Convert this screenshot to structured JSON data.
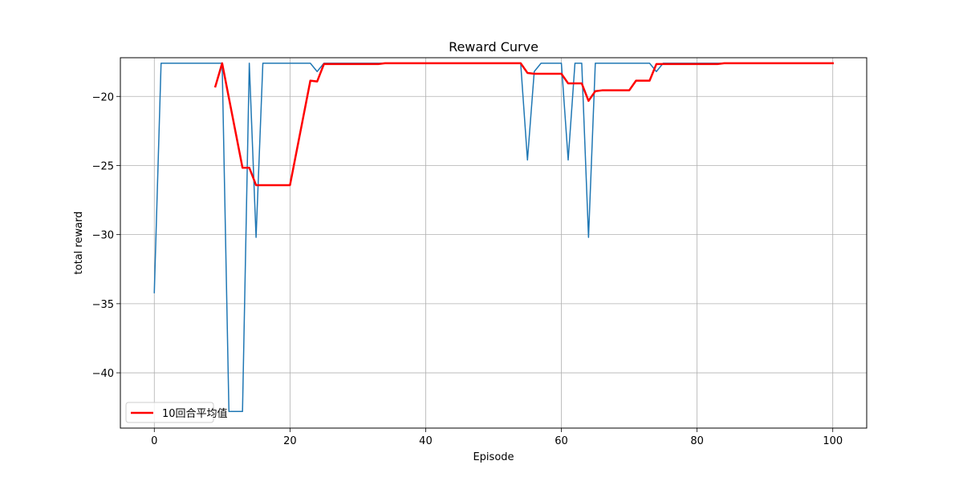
{
  "chart_data": {
    "type": "line",
    "title": "Reward Curve",
    "xlabel": "Episode",
    "ylabel": "total reward",
    "xlim": [
      -5,
      105
    ],
    "ylim": [
      -44,
      -17.2
    ],
    "xticks": [
      0,
      20,
      40,
      60,
      80,
      100
    ],
    "yticks": [
      -40,
      -35,
      -30,
      -25,
      -20
    ],
    "xtick_labels": [
      "0",
      "20",
      "40",
      "60",
      "80",
      "100"
    ],
    "ytick_labels": [
      "−40",
      "−35",
      "−30",
      "−25",
      "−20"
    ],
    "grid": true,
    "legend_position": "lower-left",
    "series": [
      {
        "color": "#1f77b4",
        "linewidth": 1.5,
        "x": [
          0,
          1,
          2,
          3,
          4,
          5,
          6,
          7,
          8,
          9,
          10,
          11,
          12,
          13,
          14,
          15,
          16,
          17,
          18,
          19,
          20,
          21,
          22,
          23,
          24,
          25,
          26,
          27,
          28,
          29,
          30,
          31,
          32,
          33,
          34,
          35,
          36,
          37,
          38,
          39,
          40,
          41,
          42,
          43,
          44,
          45,
          46,
          47,
          48,
          49,
          50,
          51,
          52,
          53,
          54,
          55,
          56,
          57,
          58,
          59,
          60,
          61,
          62,
          63,
          64,
          65,
          66,
          67,
          68,
          69,
          70,
          71,
          72,
          73,
          74,
          75,
          76,
          77,
          78,
          79,
          80,
          81,
          82,
          83,
          84,
          85,
          86,
          87,
          88,
          89,
          90,
          91,
          92,
          93,
          94,
          95,
          96,
          97,
          98,
          99,
          100
        ],
        "y": [
          -34.2,
          -17.6,
          -17.6,
          -17.6,
          -17.6,
          -17.6,
          -17.6,
          -17.6,
          -17.6,
          -17.6,
          -17.6,
          -42.8,
          -42.8,
          -42.8,
          -17.6,
          -30.2,
          -17.6,
          -17.6,
          -17.6,
          -17.6,
          -17.6,
          -17.6,
          -17.6,
          -17.6,
          -18.2,
          -17.6,
          -17.6,
          -17.6,
          -17.6,
          -17.6,
          -17.6,
          -17.6,
          -17.6,
          -17.6,
          -17.6,
          -17.6,
          -17.6,
          -17.6,
          -17.6,
          -17.6,
          -17.6,
          -17.6,
          -17.6,
          -17.6,
          -17.6,
          -17.6,
          -17.6,
          -17.6,
          -17.6,
          -17.6,
          -17.6,
          -17.6,
          -17.6,
          -17.6,
          -17.6,
          -24.6,
          -18.2,
          -17.6,
          -17.6,
          -17.6,
          -17.6,
          -24.6,
          -17.6,
          -17.6,
          -30.2,
          -17.6,
          -17.6,
          -17.6,
          -17.6,
          -17.6,
          -17.6,
          -17.6,
          -17.6,
          -17.6,
          -18.2,
          -17.6,
          -17.6,
          -17.6,
          -17.6,
          -17.6,
          -17.6,
          -17.6,
          -17.6,
          -17.6,
          -17.6,
          -17.6,
          -17.6,
          -17.6,
          -17.6,
          -17.6,
          -17.6,
          -17.6,
          -17.6,
          -17.6,
          -17.6,
          -17.6,
          -17.6,
          -17.6,
          -17.6,
          -17.6,
          -17.6
        ]
      },
      {
        "name": "10回合平均值",
        "color": "#ff0000",
        "linewidth": 2.5,
        "x": [
          9,
          10,
          11,
          12,
          13,
          14,
          15,
          16,
          17,
          18,
          19,
          20,
          21,
          22,
          23,
          24,
          25,
          26,
          27,
          28,
          29,
          30,
          31,
          32,
          33,
          34,
          35,
          36,
          37,
          38,
          39,
          40,
          41,
          42,
          43,
          44,
          45,
          46,
          47,
          48,
          49,
          50,
          51,
          52,
          53,
          54,
          55,
          56,
          57,
          58,
          59,
          60,
          61,
          62,
          63,
          64,
          65,
          66,
          67,
          68,
          69,
          70,
          71,
          72,
          73,
          74,
          75,
          76,
          77,
          78,
          79,
          80,
          81,
          82,
          83,
          84,
          85,
          86,
          87,
          88,
          89,
          90,
          91,
          92,
          93,
          94,
          95,
          96,
          97,
          98,
          99,
          100
        ],
        "y": [
          -19.28,
          -17.6,
          -20.12,
          -22.64,
          -25.16,
          -25.16,
          -26.42,
          -26.42,
          -26.42,
          -26.42,
          -26.42,
          -26.42,
          -23.9,
          -21.38,
          -18.86,
          -18.92,
          -17.66,
          -17.66,
          -17.66,
          -17.66,
          -17.66,
          -17.66,
          -17.66,
          -17.66,
          -17.66,
          -17.6,
          -17.6,
          -17.6,
          -17.6,
          -17.6,
          -17.6,
          -17.6,
          -17.6,
          -17.6,
          -17.6,
          -17.6,
          -17.6,
          -17.6,
          -17.6,
          -17.6,
          -17.6,
          -17.6,
          -17.6,
          -17.6,
          -17.6,
          -17.6,
          -18.3,
          -18.36,
          -18.36,
          -18.36,
          -18.36,
          -18.36,
          -19.06,
          -19.06,
          -19.06,
          -20.32,
          -19.62,
          -19.56,
          -19.56,
          -19.56,
          -19.56,
          -19.56,
          -18.86,
          -18.86,
          -18.86,
          -17.66,
          -17.66,
          -17.66,
          -17.66,
          -17.66,
          -17.66,
          -17.66,
          -17.66,
          -17.66,
          -17.66,
          -17.6,
          -17.6,
          -17.6,
          -17.6,
          -17.6,
          -17.6,
          -17.6,
          -17.6,
          -17.6,
          -17.6,
          -17.6,
          -17.6,
          -17.6,
          -17.6,
          -17.6,
          -17.6,
          -17.6
        ]
      }
    ]
  }
}
